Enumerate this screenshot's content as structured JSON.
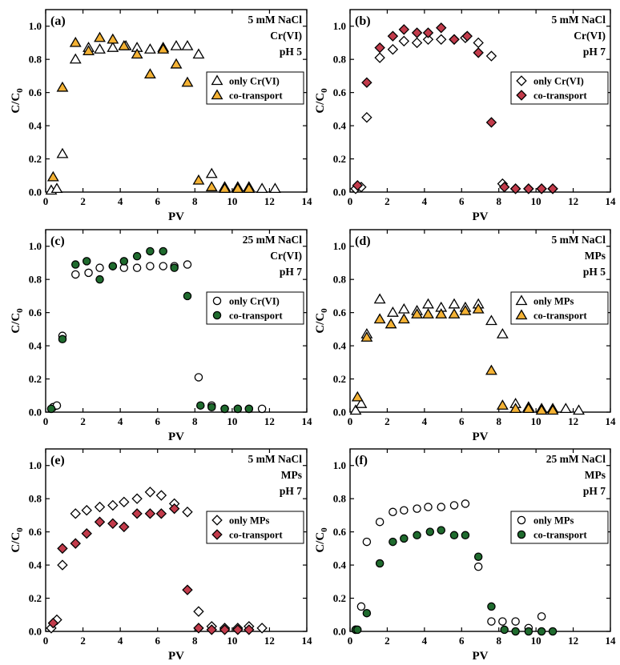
{
  "figure": {
    "colors": {
      "orange": "#f4b234",
      "red": "#c23b4b",
      "green": "#1f6b2e",
      "white": "#ffffff",
      "black": "#000000"
    },
    "xlim": [
      0,
      14
    ],
    "xticks": [
      0,
      2,
      4,
      6,
      8,
      10,
      12,
      14
    ],
    "ylim": [
      0,
      1.1
    ],
    "yticks": [
      0.0,
      0.2,
      0.4,
      0.6,
      0.8,
      1.0
    ],
    "ytick_labels": [
      "0.0",
      "0.2",
      "0.4",
      "0.6",
      "0.8",
      "1.0"
    ]
  },
  "chart_data": [
    {
      "type": "scatter",
      "panel": "(a)",
      "xlabel": "PV",
      "ylabel": "C/C",
      "ylabel_sub": "0",
      "conditions": [
        "5 mM NaCl",
        "Cr(VI)",
        "pH 5"
      ],
      "legend": "right",
      "series": [
        {
          "name": "only Cr(VI)",
          "marker": "triangle",
          "color": "white",
          "x": [
            0.3,
            0.6,
            0.9,
            1.6,
            2.3,
            2.9,
            3.6,
            4.3,
            4.9,
            5.6,
            6.3,
            7.0,
            7.6,
            8.2,
            8.9,
            9.6,
            10.3,
            10.9,
            11.6,
            12.3
          ],
          "y": [
            0.01,
            0.02,
            0.23,
            0.8,
            0.87,
            0.86,
            0.87,
            0.88,
            0.87,
            0.86,
            0.87,
            0.88,
            0.88,
            0.83,
            0.11,
            0.03,
            0.03,
            0.03,
            0.02,
            0.02
          ]
        },
        {
          "name": "co-transport",
          "marker": "triangle",
          "color": "orange",
          "x": [
            0.4,
            0.9,
            1.6,
            2.3,
            2.9,
            3.6,
            4.2,
            4.9,
            5.6,
            6.3,
            7.0,
            7.6,
            8.2,
            8.9,
            9.6,
            10.3,
            10.9
          ],
          "y": [
            0.09,
            0.63,
            0.9,
            0.85,
            0.93,
            0.92,
            0.88,
            0.83,
            0.71,
            0.86,
            0.77,
            0.66,
            0.07,
            0.03,
            0.02,
            0.02,
            0.02
          ]
        }
      ]
    },
    {
      "type": "scatter",
      "panel": "(b)",
      "xlabel": "PV",
      "ylabel": "C/C",
      "ylabel_sub": "0",
      "conditions": [
        "5 mM NaCl",
        "Cr(VI)",
        "pH 7"
      ],
      "legend": "right",
      "series": [
        {
          "name": "only Cr(VI)",
          "marker": "diamond",
          "color": "white",
          "x": [
            0.3,
            0.6,
            0.9,
            1.6,
            2.3,
            2.9,
            3.6,
            4.2,
            4.9,
            5.6,
            6.2,
            6.9,
            7.6,
            8.2,
            8.9,
            9.6,
            10.3,
            10.9
          ],
          "y": [
            0.02,
            0.03,
            0.45,
            0.81,
            0.86,
            0.91,
            0.9,
            0.92,
            0.92,
            0.92,
            0.93,
            0.9,
            0.82,
            0.05,
            0.02,
            0.02,
            0.02,
            0.02
          ]
        },
        {
          "name": "co-transport",
          "marker": "diamond",
          "color": "red",
          "x": [
            0.4,
            0.9,
            1.6,
            2.3,
            2.9,
            3.6,
            4.2,
            4.9,
            5.6,
            6.3,
            6.9,
            7.6,
            8.3,
            8.9,
            9.6,
            10.3,
            10.9
          ],
          "y": [
            0.04,
            0.66,
            0.87,
            0.94,
            0.98,
            0.96,
            0.96,
            0.99,
            0.92,
            0.94,
            0.84,
            0.42,
            0.03,
            0.02,
            0.02,
            0.02,
            0.02
          ]
        }
      ]
    },
    {
      "type": "scatter",
      "panel": "(c)",
      "xlabel": "PV",
      "ylabel": "C/C",
      "ylabel_sub": "0",
      "conditions": [
        "25 mM NaCl",
        "Cr(VI)",
        "pH 7"
      ],
      "legend": "right",
      "series": [
        {
          "name": "only Cr(VI)",
          "marker": "circle",
          "color": "white",
          "x": [
            0.4,
            0.6,
            0.9,
            1.6,
            2.3,
            2.9,
            3.6,
            4.2,
            4.9,
            5.6,
            6.3,
            6.9,
            7.6,
            8.2,
            8.9,
            9.6,
            10.3,
            10.9,
            11.6
          ],
          "y": [
            0.03,
            0.04,
            0.46,
            0.83,
            0.84,
            0.87,
            0.88,
            0.87,
            0.87,
            0.88,
            0.88,
            0.88,
            0.89,
            0.21,
            0.04,
            0.02,
            0.02,
            0.02,
            0.02
          ]
        },
        {
          "name": "co-transport",
          "marker": "circle",
          "color": "green",
          "x": [
            0.3,
            0.9,
            1.6,
            2.2,
            2.9,
            3.6,
            4.2,
            4.9,
            5.6,
            6.3,
            6.9,
            7.6,
            8.3,
            8.9,
            9.6,
            10.3,
            10.9
          ],
          "y": [
            0.02,
            0.44,
            0.89,
            0.91,
            0.8,
            0.88,
            0.91,
            0.94,
            0.97,
            0.97,
            0.87,
            0.7,
            0.04,
            0.03,
            0.02,
            0.02,
            0.02
          ]
        }
      ]
    },
    {
      "type": "scatter",
      "panel": "(d)",
      "xlabel": "PV",
      "ylabel": "C/C",
      "ylabel_sub": "0",
      "conditions": [
        "5 mM NaCl",
        "MPs",
        "pH 5"
      ],
      "legend": "right",
      "series": [
        {
          "name": "only MPs",
          "marker": "triangle",
          "color": "white",
          "x": [
            0.3,
            0.6,
            0.9,
            1.6,
            2.3,
            2.9,
            3.6,
            4.2,
            4.9,
            5.6,
            6.2,
            6.9,
            7.6,
            8.2,
            8.9,
            9.6,
            10.3,
            10.9,
            11.6,
            12.3
          ],
          "y": [
            0.01,
            0.05,
            0.47,
            0.68,
            0.6,
            0.62,
            0.61,
            0.65,
            0.63,
            0.65,
            0.63,
            0.65,
            0.55,
            0.47,
            0.05,
            0.03,
            0.02,
            0.02,
            0.02,
            0.01
          ]
        },
        {
          "name": "co-transport",
          "marker": "triangle",
          "color": "orange",
          "x": [
            0.4,
            0.9,
            1.6,
            2.2,
            2.9,
            3.6,
            4.2,
            4.9,
            5.6,
            6.2,
            6.9,
            7.6,
            8.2,
            8.9,
            9.6,
            10.3,
            10.9
          ],
          "y": [
            0.09,
            0.45,
            0.56,
            0.53,
            0.56,
            0.59,
            0.59,
            0.59,
            0.59,
            0.61,
            0.62,
            0.25,
            0.04,
            0.02,
            0.02,
            0.01,
            0.01
          ]
        }
      ]
    },
    {
      "type": "scatter",
      "panel": "(e)",
      "xlabel": "PV",
      "ylabel": "C/C",
      "ylabel_sub": "0",
      "conditions": [
        "5 mM NaCl",
        "MPs",
        "pH 7"
      ],
      "legend": "right",
      "series": [
        {
          "name": "only MPs",
          "marker": "diamond",
          "color": "white",
          "x": [
            0.3,
            0.6,
            0.9,
            1.6,
            2.2,
            2.9,
            3.6,
            4.2,
            4.9,
            5.6,
            6.2,
            6.9,
            7.6,
            8.2,
            8.9,
            9.6,
            10.3,
            10.9,
            11.6
          ],
          "y": [
            0.02,
            0.07,
            0.4,
            0.71,
            0.73,
            0.75,
            0.76,
            0.78,
            0.8,
            0.84,
            0.82,
            0.77,
            0.72,
            0.12,
            0.03,
            0.02,
            0.02,
            0.03,
            0.02
          ]
        },
        {
          "name": "co-transport",
          "marker": "diamond",
          "color": "red",
          "x": [
            0.4,
            0.9,
            1.6,
            2.2,
            2.9,
            3.6,
            4.2,
            4.9,
            5.6,
            6.2,
            6.9,
            7.6,
            8.2,
            8.9,
            9.6,
            10.3,
            10.9
          ],
          "y": [
            0.05,
            0.5,
            0.53,
            0.59,
            0.66,
            0.65,
            0.63,
            0.71,
            0.71,
            0.71,
            0.74,
            0.25,
            0.02,
            0.01,
            0.01,
            0.01,
            0.01
          ]
        }
      ]
    },
    {
      "type": "scatter",
      "panel": "(f)",
      "xlabel": "PV",
      "ylabel": "C/C",
      "ylabel_sub": "0",
      "conditions": [
        "25 mM NaCl",
        "MPs",
        "pH 7"
      ],
      "legend": "right",
      "series": [
        {
          "name": "only MPs",
          "marker": "circle",
          "color": "white",
          "x": [
            0.3,
            0.6,
            0.9,
            1.6,
            2.3,
            2.9,
            3.6,
            4.2,
            4.9,
            5.6,
            6.2,
            6.9,
            7.6,
            8.2,
            8.9,
            9.6,
            10.3
          ],
          "y": [
            0.01,
            0.15,
            0.54,
            0.66,
            0.72,
            0.73,
            0.74,
            0.75,
            0.75,
            0.76,
            0.77,
            0.39,
            0.06,
            0.06,
            0.06,
            0.02,
            0.09
          ]
        },
        {
          "name": "co-transport",
          "marker": "circle",
          "color": "green",
          "x": [
            0.3,
            0.4,
            0.9,
            1.6,
            2.3,
            2.9,
            3.6,
            4.3,
            4.9,
            5.6,
            6.2,
            6.9,
            7.6,
            8.3,
            8.9,
            9.6,
            10.3,
            10.9
          ],
          "y": [
            0.01,
            0.01,
            0.11,
            0.41,
            0.54,
            0.56,
            0.58,
            0.6,
            0.61,
            0.58,
            0.58,
            0.45,
            0.15,
            0.01,
            0.0,
            0.0,
            0.0,
            0.0
          ]
        }
      ]
    }
  ]
}
